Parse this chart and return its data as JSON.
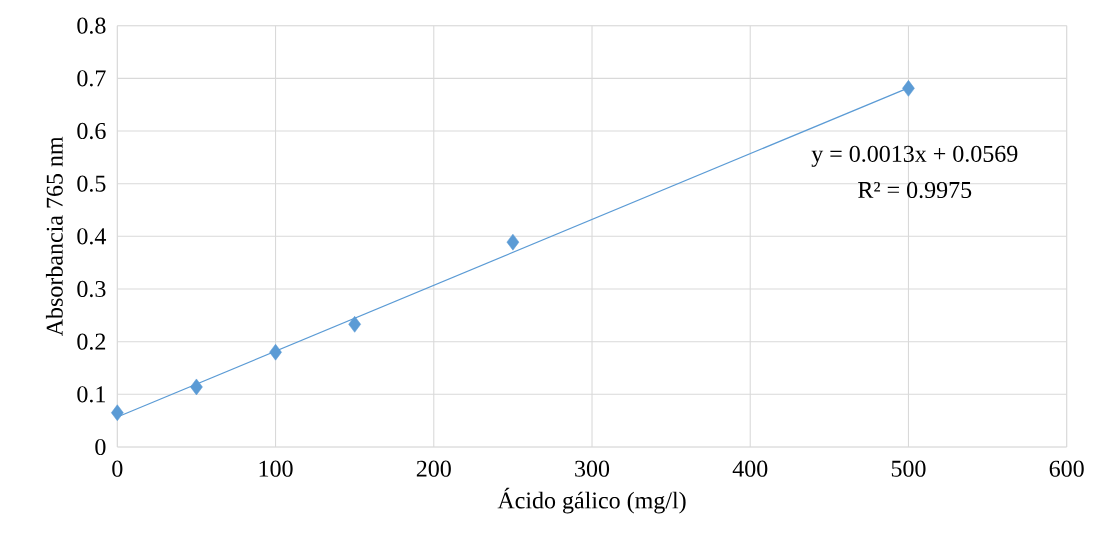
{
  "chart_data": {
    "type": "scatter",
    "xlabel": "Ácido gálico (mg/l)",
    "ylabel": "Absorbancia 765 nm",
    "xlim": [
      0,
      600
    ],
    "xticks": [
      0,
      100,
      200,
      300,
      400,
      500,
      600
    ],
    "ylim": [
      0,
      0.8
    ],
    "yticks": [
      0,
      0.1,
      0.2,
      0.3,
      0.4,
      0.5,
      0.6,
      0.7,
      0.8
    ],
    "grid": true,
    "series": [
      {
        "color": "#5b9bd5",
        "marker": "diamond",
        "x": [
          0,
          50,
          100,
          150,
          250,
          500
        ],
        "values": [
          0.065,
          0.114,
          0.18,
          0.233,
          0.389,
          0.681
        ]
      },
      {
        "type": "line",
        "color": "#5b9bd5",
        "marker": "none",
        "x": [
          0,
          500
        ],
        "values": [
          0.057,
          0.682
        ]
      }
    ],
    "annotations": [
      "y = 0.0013x + 0.0569",
      "R² = 0.9975"
    ]
  }
}
